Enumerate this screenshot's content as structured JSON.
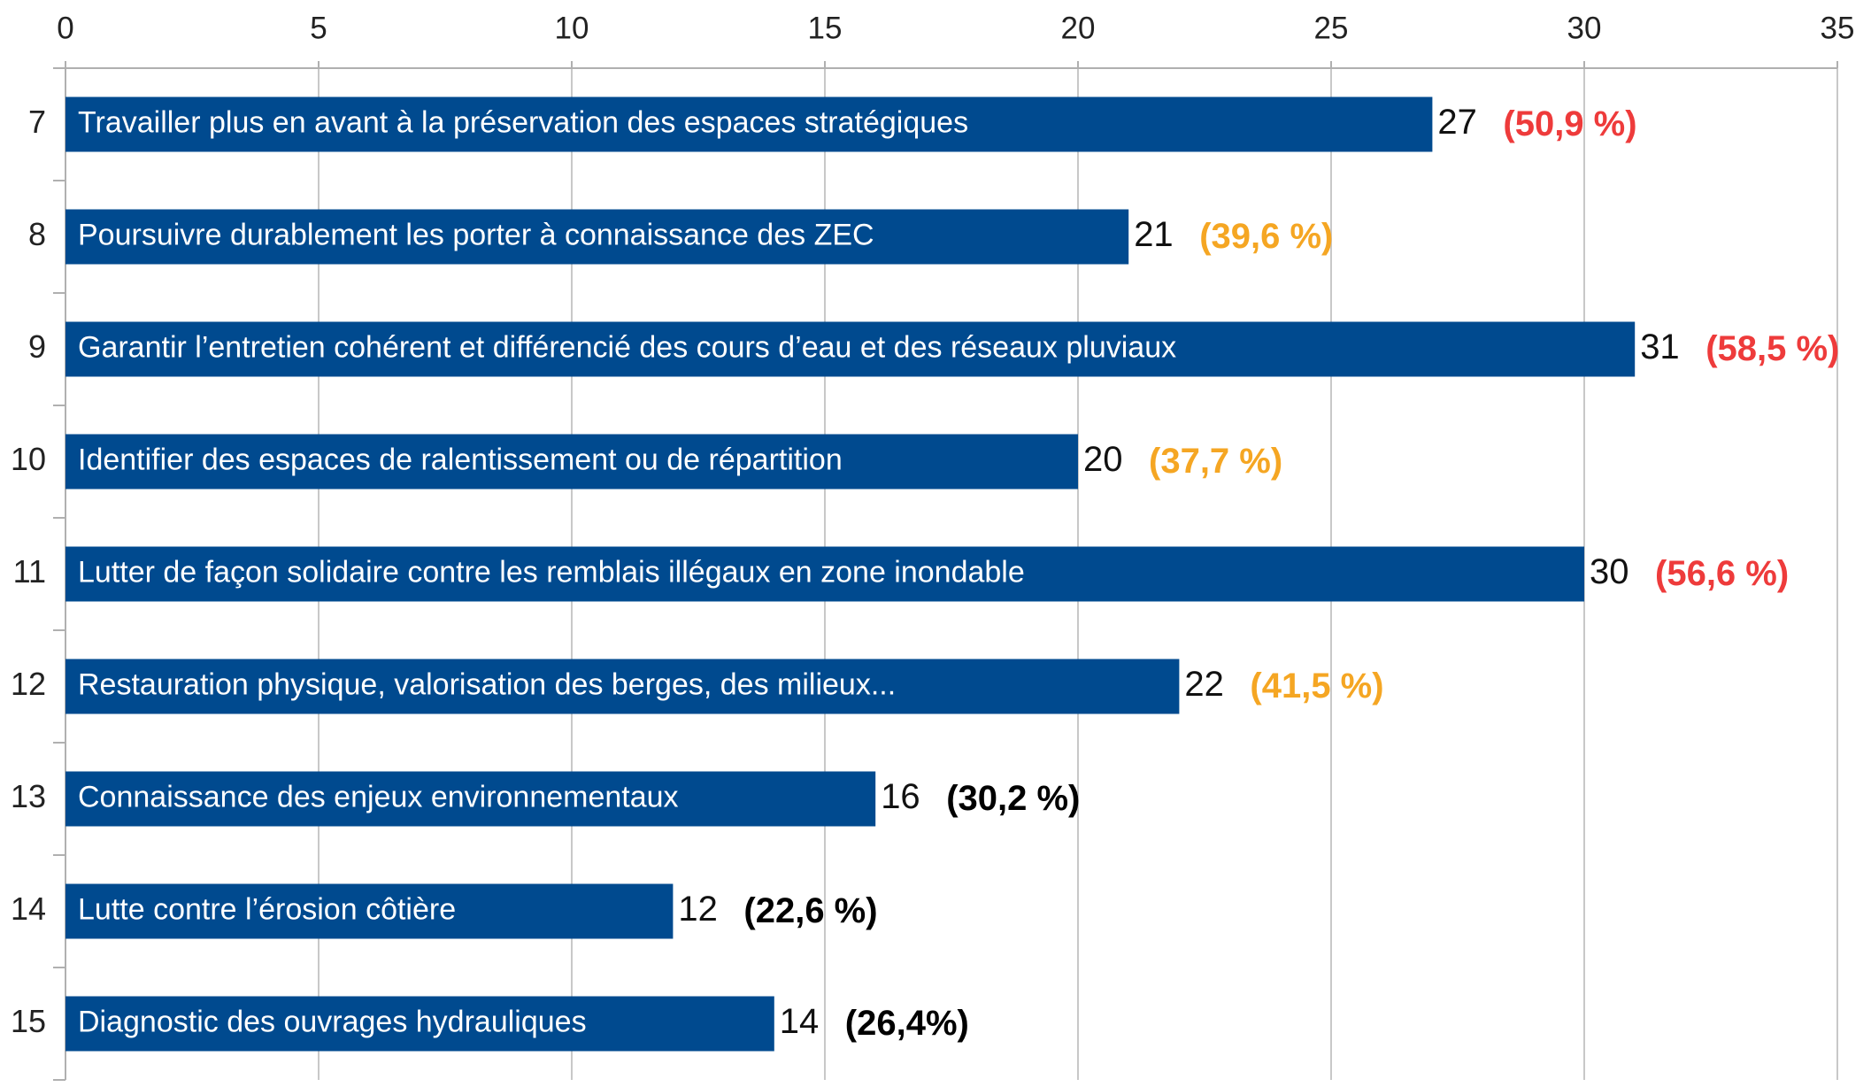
{
  "chart_data": {
    "type": "bar",
    "orientation": "horizontal",
    "categories": [
      "7",
      "8",
      "9",
      "10",
      "11",
      "12",
      "13",
      "14",
      "15"
    ],
    "bar_labels": [
      "Travailler plus en avant à la préservation des espaces stratégiques",
      "Poursuivre durablement les porter à connaissance des ZEC",
      "Garantir l’entretien cohérent et différencié des cours d’eau et des réseaux pluviaux",
      "Identifier des espaces de ralentissement ou de répartition",
      "Lutter de façon solidaire contre les remblais illégaux en zone inondable",
      "Restauration physique, valorisation des berges, des milieux...",
      "Connaissance des enjeux environnementaux",
      "Lutte contre l’érosion côtière",
      "Diagnostic des ouvrages hydrauliques"
    ],
    "values": [
      27,
      21,
      31,
      20,
      30,
      22,
      16,
      12,
      14
    ],
    "annotations": [
      "(50,9 %)",
      "(39,6 %)",
      "(58,5 %)",
      "(37,7 %)",
      "(56,6 %)",
      "(41,5 %)",
      "(30,2 %)",
      "(22,6 %)",
      "(26,4%)"
    ],
    "annotation_colors": [
      "#ee3b3b",
      "#f5a623",
      "#ee3b3b",
      "#f5a623",
      "#ee3b3b",
      "#f5a623",
      "#000000",
      "#000000",
      "#000000"
    ],
    "color": "#004a8f",
    "xlim": [
      0,
      35
    ],
    "xticks": [
      0,
      5,
      10,
      15,
      20,
      25,
      30,
      35
    ],
    "grid": true
  }
}
